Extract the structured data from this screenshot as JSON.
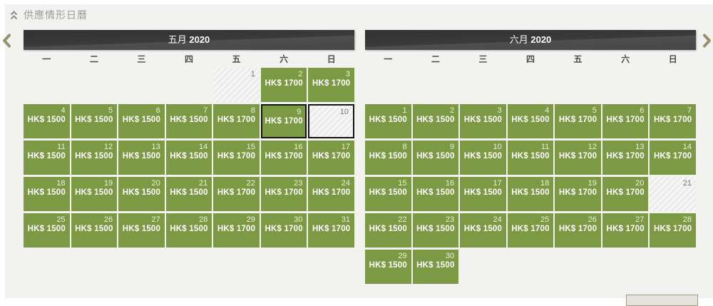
{
  "panel": {
    "title": "供應情形日曆",
    "collapse_icon": "double-chevron-up"
  },
  "nav": {
    "prev_icon": "chevron-left",
    "next_icon": "chevron-right"
  },
  "weekdays": [
    "一",
    "二",
    "三",
    "四",
    "五",
    "六",
    "日"
  ],
  "calendars": [
    {
      "month_label": "五月",
      "year": "2020",
      "lead_blanks": 4,
      "days": [
        {
          "day": "1",
          "price": "",
          "state": "unavailable"
        },
        {
          "day": "2",
          "price": "HK$ 1700",
          "state": "available"
        },
        {
          "day": "3",
          "price": "HK$ 1700",
          "state": "available"
        },
        {
          "day": "4",
          "price": "HK$ 1500",
          "state": "available"
        },
        {
          "day": "5",
          "price": "HK$ 1500",
          "state": "available"
        },
        {
          "day": "6",
          "price": "HK$ 1500",
          "state": "available"
        },
        {
          "day": "7",
          "price": "HK$ 1500",
          "state": "available"
        },
        {
          "day": "8",
          "price": "HK$ 1700",
          "state": "available"
        },
        {
          "day": "9",
          "price": "HK$ 1700",
          "state": "selected"
        },
        {
          "day": "10",
          "price": "",
          "state": "selected-unavailable"
        },
        {
          "day": "11",
          "price": "HK$ 1500",
          "state": "available"
        },
        {
          "day": "12",
          "price": "HK$ 1500",
          "state": "available"
        },
        {
          "day": "13",
          "price": "HK$ 1500",
          "state": "available"
        },
        {
          "day": "14",
          "price": "HK$ 1500",
          "state": "available"
        },
        {
          "day": "15",
          "price": "HK$ 1700",
          "state": "available"
        },
        {
          "day": "16",
          "price": "HK$ 1700",
          "state": "available"
        },
        {
          "day": "17",
          "price": "HK$ 1700",
          "state": "available"
        },
        {
          "day": "18",
          "price": "HK$ 1500",
          "state": "available"
        },
        {
          "day": "19",
          "price": "HK$ 1500",
          "state": "available"
        },
        {
          "day": "20",
          "price": "HK$ 1500",
          "state": "available"
        },
        {
          "day": "21",
          "price": "HK$ 1500",
          "state": "available"
        },
        {
          "day": "22",
          "price": "HK$ 1700",
          "state": "available"
        },
        {
          "day": "23",
          "price": "HK$ 1700",
          "state": "available"
        },
        {
          "day": "24",
          "price": "HK$ 1700",
          "state": "available"
        },
        {
          "day": "25",
          "price": "HK$ 1500",
          "state": "available"
        },
        {
          "day": "26",
          "price": "HK$ 1500",
          "state": "available"
        },
        {
          "day": "27",
          "price": "HK$ 1500",
          "state": "available"
        },
        {
          "day": "28",
          "price": "HK$ 1500",
          "state": "available"
        },
        {
          "day": "29",
          "price": "HK$ 1700",
          "state": "available"
        },
        {
          "day": "30",
          "price": "HK$ 1700",
          "state": "available"
        },
        {
          "day": "31",
          "price": "HK$ 1700",
          "state": "available"
        }
      ]
    },
    {
      "month_label": "六月",
      "year": "2020",
      "lead_blanks": 7,
      "days": [
        {
          "day": "1",
          "price": "HK$ 1500",
          "state": "available"
        },
        {
          "day": "2",
          "price": "HK$ 1500",
          "state": "available"
        },
        {
          "day": "3",
          "price": "HK$ 1500",
          "state": "available"
        },
        {
          "day": "4",
          "price": "HK$ 1500",
          "state": "available"
        },
        {
          "day": "5",
          "price": "HK$ 1700",
          "state": "available"
        },
        {
          "day": "6",
          "price": "HK$ 1700",
          "state": "available"
        },
        {
          "day": "7",
          "price": "HK$ 1700",
          "state": "available"
        },
        {
          "day": "8",
          "price": "HK$ 1500",
          "state": "available"
        },
        {
          "day": "9",
          "price": "HK$ 1500",
          "state": "available"
        },
        {
          "day": "10",
          "price": "HK$ 1500",
          "state": "available"
        },
        {
          "day": "11",
          "price": "HK$ 1500",
          "state": "available"
        },
        {
          "day": "12",
          "price": "HK$ 1700",
          "state": "available"
        },
        {
          "day": "13",
          "price": "HK$ 1700",
          "state": "available"
        },
        {
          "day": "14",
          "price": "HK$ 1700",
          "state": "available"
        },
        {
          "day": "15",
          "price": "HK$ 1500",
          "state": "available"
        },
        {
          "day": "16",
          "price": "HK$ 1500",
          "state": "available"
        },
        {
          "day": "17",
          "price": "HK$ 1500",
          "state": "available"
        },
        {
          "day": "18",
          "price": "HK$ 1500",
          "state": "available"
        },
        {
          "day": "19",
          "price": "HK$ 1700",
          "state": "available"
        },
        {
          "day": "20",
          "price": "HK$ 1700",
          "state": "available"
        },
        {
          "day": "21",
          "price": "",
          "state": "unavailable"
        },
        {
          "day": "22",
          "price": "HK$ 1500",
          "state": "available"
        },
        {
          "day": "23",
          "price": "HK$ 1500",
          "state": "available"
        },
        {
          "day": "24",
          "price": "HK$ 1500",
          "state": "available"
        },
        {
          "day": "25",
          "price": "HK$ 1700",
          "state": "available"
        },
        {
          "day": "26",
          "price": "HK$ 1700",
          "state": "available"
        },
        {
          "day": "27",
          "price": "HK$ 1700",
          "state": "available"
        },
        {
          "day": "28",
          "price": "HK$ 1700",
          "state": "available"
        },
        {
          "day": "29",
          "price": "HK$ 1500",
          "state": "available"
        },
        {
          "day": "30",
          "price": "HK$ 1500",
          "state": "available"
        }
      ]
    }
  ],
  "colors": {
    "available_bg": "#7c9a43",
    "unavailable_bg": "#ececec",
    "selected_border": "#141414",
    "month_bar_bg": "#3a3a3a",
    "arrow_accent": "#97936f",
    "panel_bg": "#f2f2f0",
    "title_text": "#9c9c9c"
  }
}
